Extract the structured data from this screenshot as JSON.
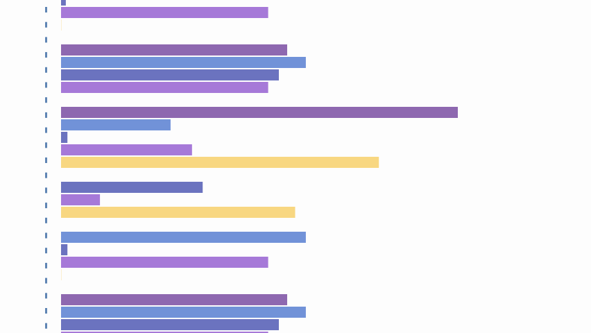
{
  "colors": {
    "background": "#fdfdfd",
    "axis_ticks": "#5f85b4",
    "series": {
      "a": "#8e68b0",
      "b": "#7192d8",
      "c": "#6b73bf",
      "d": "#a679d8",
      "e": "#f8d781"
    }
  },
  "chart_data": {
    "type": "bar",
    "orientation": "horizontal",
    "title": "",
    "xlabel": "",
    "ylabel": "",
    "grid": false,
    "legend": "none",
    "xlim": [
      0,
      100
    ],
    "groups": [
      {
        "bars": [
          {
            "series": "c",
            "value": 1.2
          },
          {
            "series": "d",
            "value": 52.2
          },
          {
            "series": "e",
            "value": 0.1
          }
        ]
      },
      {
        "bars": [
          {
            "series": "a",
            "value": 57.0
          },
          {
            "series": "b",
            "value": 61.7
          },
          {
            "series": "c",
            "value": 54.9
          },
          {
            "series": "d",
            "value": 52.2
          }
        ]
      },
      {
        "bars": [
          {
            "series": "a",
            "value": 100.0
          },
          {
            "series": "b",
            "value": 27.6
          },
          {
            "series": "c",
            "value": 1.6
          },
          {
            "series": "d",
            "value": 33.0
          },
          {
            "series": "e",
            "value": 80.1
          }
        ]
      },
      {
        "bars": [
          {
            "series": "c",
            "value": 35.7
          },
          {
            "series": "d",
            "value": 9.8
          },
          {
            "series": "e",
            "value": 59.0
          }
        ]
      },
      {
        "bars": [
          {
            "series": "b",
            "value": 61.7
          },
          {
            "series": "c",
            "value": 1.6
          },
          {
            "series": "d",
            "value": 52.2
          },
          {
            "series": "e",
            "value": 0.1
          }
        ]
      },
      {
        "bars": [
          {
            "series": "a",
            "value": 57.0
          },
          {
            "series": "b",
            "value": 61.7
          },
          {
            "series": "c",
            "value": 54.9
          },
          {
            "series": "d",
            "value": 52.2
          }
        ]
      }
    ]
  }
}
